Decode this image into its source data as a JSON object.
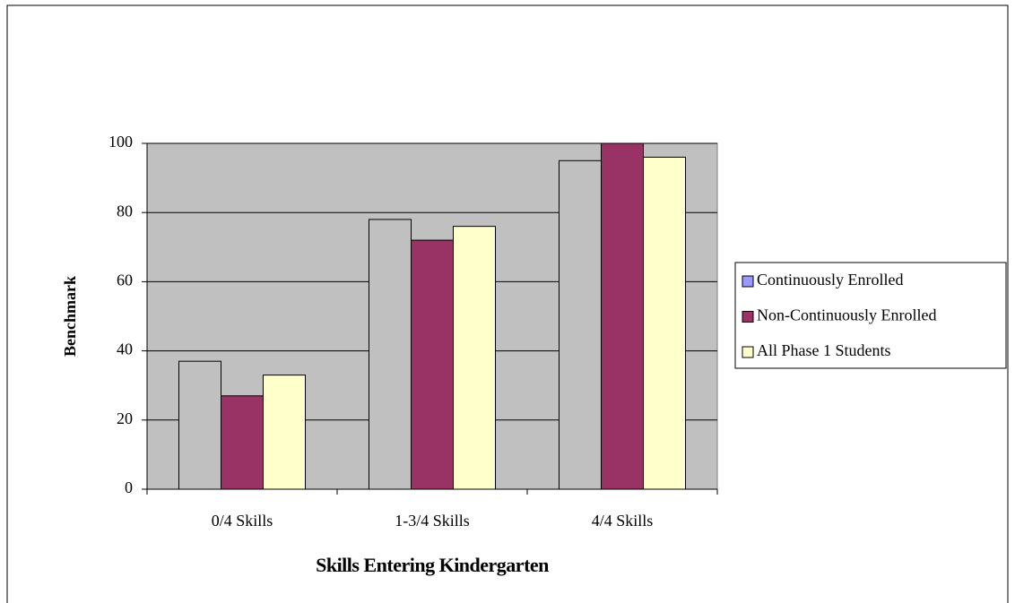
{
  "chart_data": {
    "type": "bar",
    "categories": [
      "0/4 Skills",
      "1-3/4 Skills",
      "4/4 Skills"
    ],
    "series": [
      {
        "name": "Continuously Enrolled",
        "color": "#c0c0c0",
        "legend_color": "#9999ff",
        "values": [
          37,
          78,
          95
        ]
      },
      {
        "name": "Non-Continuously Enrolled",
        "color": "#993366",
        "legend_color": "#993366",
        "values": [
          27,
          72,
          100
        ]
      },
      {
        "name": "All Phase 1 Students",
        "color": "#ffffcc",
        "legend_color": "#ffffcc",
        "values": [
          33,
          76,
          96
        ]
      }
    ],
    "xlabel": "Skills Entering Kindergarten",
    "ylabel": "Benchmark",
    "ylim": [
      0,
      100
    ],
    "yticks": [
      0,
      20,
      40,
      60,
      80,
      100
    ],
    "grid": true,
    "plot_background": "#c0c0c0",
    "legend": "right"
  }
}
